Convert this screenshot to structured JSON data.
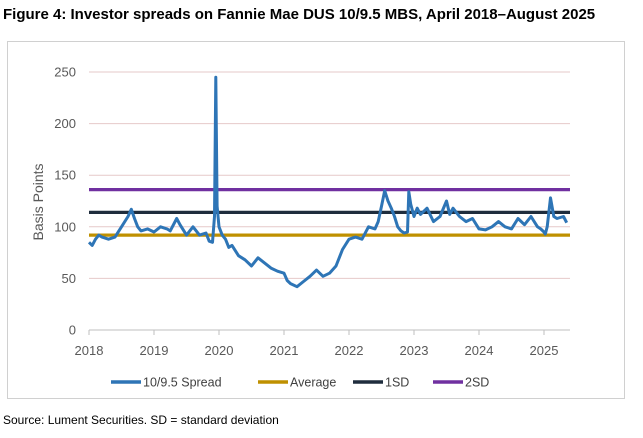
{
  "figure": {
    "title": "Figure 4: Investor spreads on Fannie Mae DUS 10/9.5 MBS, April 2018–August 2025",
    "source": "Source: Lument Securities. SD = standard deviation"
  },
  "chart_data": {
    "type": "line",
    "ylabel": "Basis Points",
    "xlabel": "",
    "ylim": [
      0,
      250
    ],
    "xlim": [
      2018.0,
      2025.4
    ],
    "y_ticks": [
      "0",
      "50",
      "100",
      "150",
      "200",
      "250"
    ],
    "x_ticks": [
      "2018",
      "2019",
      "2020",
      "2021",
      "2022",
      "2023",
      "2024",
      "2025"
    ],
    "grid": "horizontal",
    "legend_position": "bottom",
    "series": [
      {
        "name": "10/9.5 Spread",
        "color": "#2E75B6",
        "x": [
          2018.0,
          2018.05,
          2018.1,
          2018.15,
          2018.2,
          2018.3,
          2018.4,
          2018.5,
          2018.6,
          2018.65,
          2018.7,
          2018.75,
          2018.8,
          2018.9,
          2019.0,
          2019.1,
          2019.2,
          2019.25,
          2019.35,
          2019.4,
          2019.5,
          2019.6,
          2019.7,
          2019.8,
          2019.85,
          2019.9,
          2019.93,
          2019.95,
          2019.97,
          2020.0,
          2020.05,
          2020.1,
          2020.15,
          2020.2,
          2020.3,
          2020.4,
          2020.5,
          2020.6,
          2020.7,
          2020.8,
          2020.9,
          2021.0,
          2021.05,
          2021.1,
          2021.2,
          2021.3,
          2021.4,
          2021.5,
          2021.6,
          2021.7,
          2021.8,
          2021.9,
          2022.0,
          2022.1,
          2022.2,
          2022.3,
          2022.4,
          2022.45,
          2022.5,
          2022.55,
          2022.6,
          2022.65,
          2022.7,
          2022.75,
          2022.8,
          2022.85,
          2022.9,
          2022.92,
          2022.95,
          2023.0,
          2023.05,
          2023.1,
          2023.2,
          2023.3,
          2023.4,
          2023.5,
          2023.55,
          2023.6,
          2023.7,
          2023.8,
          2023.9,
          2024.0,
          2024.1,
          2024.2,
          2024.3,
          2024.4,
          2024.5,
          2024.6,
          2024.7,
          2024.8,
          2024.9,
          2024.95,
          2025.0,
          2025.02,
          2025.05,
          2025.1,
          2025.15,
          2025.2,
          2025.3,
          2025.35
        ],
        "values": [
          85,
          82,
          88,
          92,
          90,
          88,
          90,
          100,
          110,
          117,
          108,
          100,
          96,
          98,
          95,
          100,
          98,
          96,
          108,
          102,
          92,
          100,
          92,
          94,
          86,
          85,
          110,
          245,
          120,
          100,
          92,
          88,
          80,
          82,
          72,
          68,
          62,
          70,
          65,
          60,
          57,
          55,
          48,
          45,
          42,
          47,
          52,
          58,
          52,
          55,
          62,
          78,
          88,
          90,
          88,
          100,
          98,
          105,
          120,
          135,
          125,
          118,
          110,
          100,
          96,
          94,
          95,
          134,
          122,
          110,
          118,
          112,
          118,
          105,
          110,
          125,
          112,
          118,
          110,
          105,
          108,
          98,
          97,
          100,
          105,
          100,
          98,
          108,
          102,
          110,
          100,
          98,
          95,
          93,
          100,
          128,
          110,
          108,
          110,
          104
        ]
      },
      {
        "name": "Average",
        "color": "#BF9000",
        "x": [
          2018.0,
          2025.4
        ],
        "values": [
          92,
          92
        ]
      },
      {
        "name": "1SD",
        "color": "#1F2D3D",
        "x": [
          2018.0,
          2025.4
        ],
        "values": [
          114,
          114
        ]
      },
      {
        "name": "2SD",
        "color": "#7030A0",
        "x": [
          2018.0,
          2025.4
        ],
        "values": [
          136,
          136
        ]
      }
    ]
  }
}
